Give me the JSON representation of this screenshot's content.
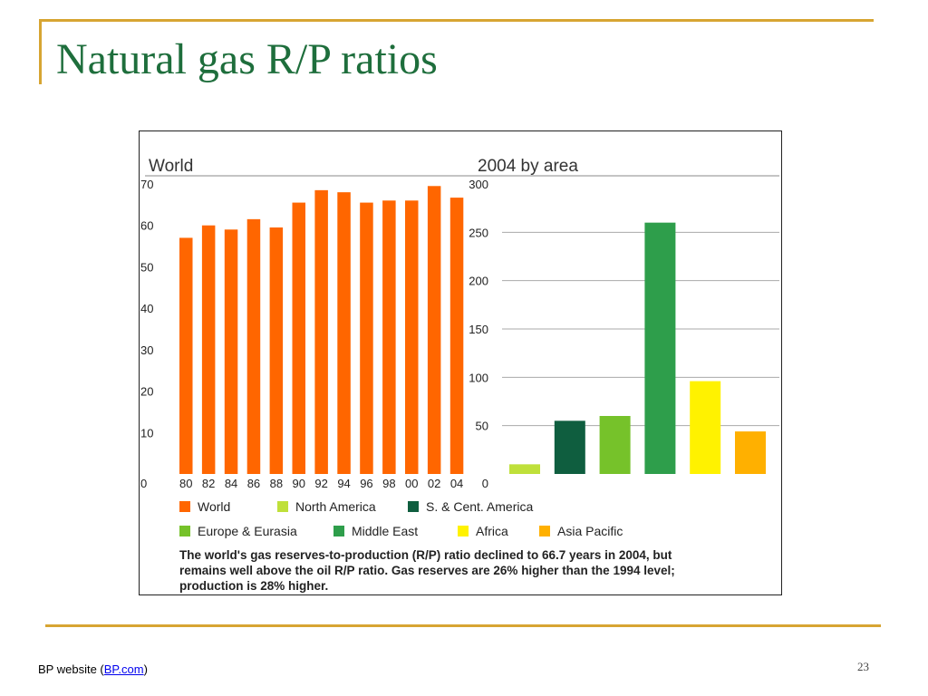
{
  "slide": {
    "title": "Natural gas R/P ratios",
    "footer": {
      "prefix": "BP website (",
      "link": "BP.com",
      "suffix": ")"
    },
    "page_number": "23"
  },
  "chart_data": [
    {
      "type": "bar",
      "title": "World",
      "categories": [
        "80",
        "82",
        "84",
        "86",
        "88",
        "90",
        "92",
        "94",
        "96",
        "98",
        "00",
        "02",
        "04"
      ],
      "series": [
        {
          "name": "World",
          "values": [
            57,
            60,
            59,
            61.5,
            59.5,
            65.5,
            68.5,
            68,
            65.5,
            66,
            66,
            69.5,
            66.7
          ]
        }
      ],
      "ylim": [
        0,
        70
      ],
      "yticks": [
        "70",
        "60",
        "50",
        "40",
        "30",
        "20",
        "10",
        "0"
      ],
      "grid": true,
      "colors": [
        "#FF6600"
      ]
    },
    {
      "type": "bar",
      "title": "2004 by area",
      "categories": [
        "North America",
        "S. & Cent. America",
        "Europe & Eurasia",
        "Middle East",
        "Africa",
        "Asia Pacific"
      ],
      "values": [
        10,
        55,
        60,
        260,
        96,
        44
      ],
      "ylim": [
        0,
        300
      ],
      "yticks": [
        "300",
        "250",
        "200",
        "150",
        "100",
        "50",
        "0"
      ],
      "grid": true,
      "colors": [
        "#BFE03A",
        "#0F5E3F",
        "#76C22A",
        "#2E9E4B",
        "#FFF200",
        "#FFB000"
      ]
    }
  ],
  "legend": [
    {
      "label": "World",
      "color": "#FF6600"
    },
    {
      "label": "North America",
      "color": "#BFE03A"
    },
    {
      "label": "S. & Cent. America",
      "color": "#0F5E3F"
    },
    {
      "label": "Europe & Eurasia",
      "color": "#76C22A"
    },
    {
      "label": "Middle East",
      "color": "#2E9E4B"
    },
    {
      "label": "Africa",
      "color": "#FFF200"
    },
    {
      "label": "Asia Pacific",
      "color": "#FFB000"
    }
  ],
  "caption": [
    "The world's gas reserves-to-production (R/P) ratio declined to 66.7 years in 2004, but",
    "remains well above the oil R/P ratio. Gas reserves are 26% higher than the 1994 level;",
    "production is 28% higher."
  ]
}
